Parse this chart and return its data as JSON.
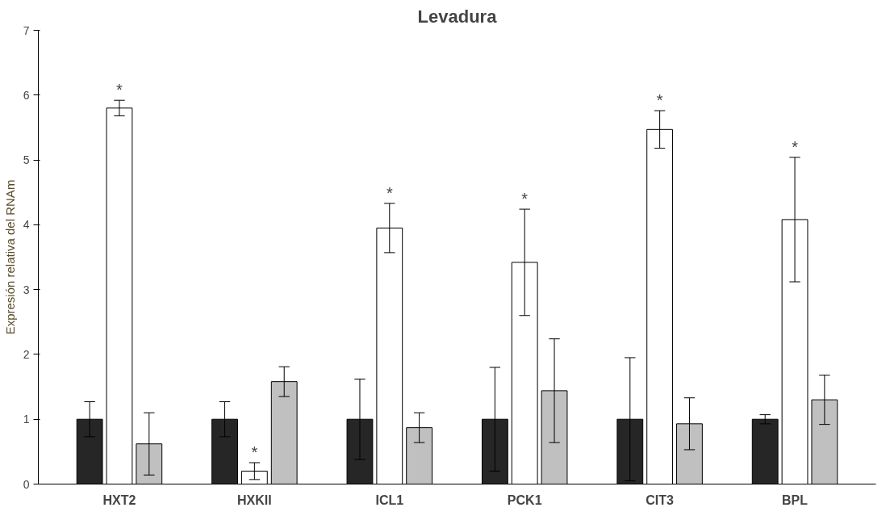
{
  "chart_data": {
    "type": "bar",
    "title": "Levadura",
    "ylabel": "Expresión relativa del RNAm",
    "categories": [
      "HXT2",
      "HXKII",
      "ICL1",
      "PCK1",
      "CIT3",
      "BPL"
    ],
    "series": [
      {
        "color": "#262626",
        "values": [
          1.0,
          1.0,
          1.0,
          1.0,
          1.0,
          1.0
        ],
        "errors": [
          0.27,
          0.27,
          0.62,
          0.8,
          0.95,
          0.07
        ]
      },
      {
        "color": "#ffffff",
        "values": [
          5.8,
          0.2,
          3.95,
          3.42,
          5.47,
          4.08
        ],
        "errors": [
          0.12,
          0.13,
          0.38,
          0.82,
          0.29,
          0.96
        ]
      },
      {
        "color": "#c0c0c0",
        "values": [
          0.62,
          1.58,
          0.87,
          1.44,
          0.93,
          1.3
        ],
        "errors": [
          0.48,
          0.23,
          0.23,
          0.8,
          0.4,
          0.38
        ]
      }
    ],
    "ylim": [
      0,
      7
    ],
    "yticks": [
      0,
      1,
      2,
      3,
      4,
      5,
      6,
      7
    ],
    "grid": false,
    "annotations": [
      "*",
      "*",
      "*",
      "*",
      "*",
      "*"
    ]
  }
}
